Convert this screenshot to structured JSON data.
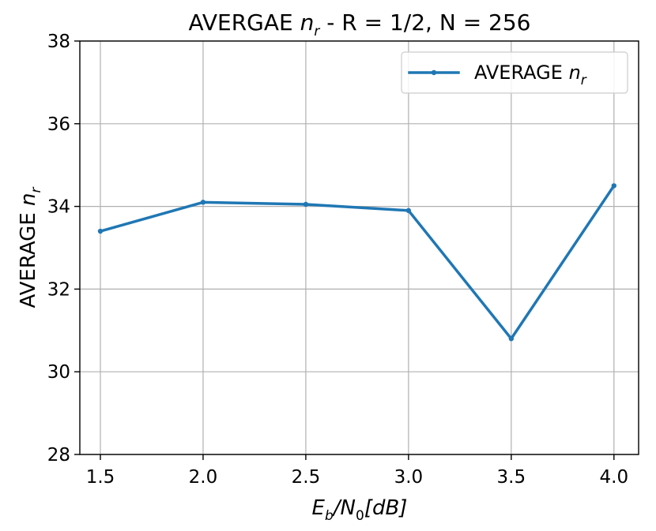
{
  "chart_data": {
    "type": "line",
    "title": {
      "main": "AVERGAE ",
      "math_base": "n",
      "math_sub": "r",
      "rest": " - R = 1/2, N = 256"
    },
    "xlabel": {
      "E": "E",
      "E_sub": "b",
      "slash": "/N",
      "N_sub": "0",
      "unit": "[dB]"
    },
    "ylabel": {
      "text": "AVERAGE ",
      "math_base": "n",
      "math_sub": "r"
    },
    "x": [
      1.5,
      2.0,
      2.5,
      3.0,
      3.5,
      4.0
    ],
    "x_tick_labels": [
      "1.5",
      "2.0",
      "2.5",
      "3.0",
      "3.5",
      "4.0"
    ],
    "y_ticks": [
      28,
      30,
      32,
      34,
      36,
      38
    ],
    "ylim": [
      28,
      38
    ],
    "xlim": [
      1.4,
      4.12
    ],
    "grid": true,
    "legend_position": "top-right",
    "series": [
      {
        "name": "AVERAGE n_r",
        "name_parts": {
          "text": "AVERAGE ",
          "math_base": "n",
          "math_sub": "r"
        },
        "color": "#1f77b4",
        "values": [
          33.4,
          34.1,
          34.05,
          33.9,
          30.8,
          34.5
        ]
      }
    ]
  }
}
